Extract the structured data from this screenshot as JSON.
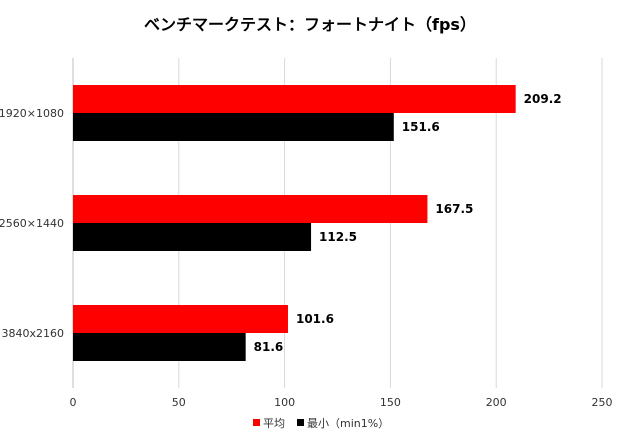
{
  "chart_data": {
    "type": "bar",
    "orientation": "horizontal",
    "title": "ベンチマークテスト：フォートナイト（fps）",
    "categories": [
      "1920×1080",
      "2560×1440",
      "3840x2160"
    ],
    "series": [
      {
        "name": "平均",
        "values": [
          209.2,
          167.5,
          101.6
        ],
        "color": "#ff0000"
      },
      {
        "name": "最小（min1%）",
        "values": [
          151.6,
          112.5,
          81.6
        ],
        "color": "#000000"
      }
    ],
    "xlim": [
      0,
      250
    ],
    "xticks": [
      0,
      50,
      100,
      150,
      200,
      250
    ],
    "grid": "vertical",
    "legend_position": "bottom"
  }
}
